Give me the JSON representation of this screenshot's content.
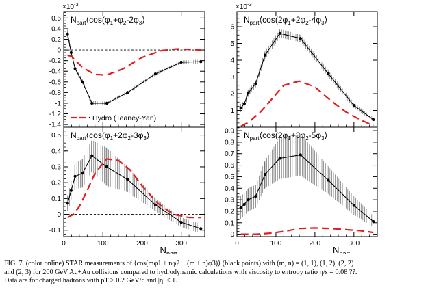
{
  "caption": {
    "lines": [
      "FIG. 7. (color online) STAR measurements of ⟨cos(mφ1 + nφ2 − (m + n)φ3)⟩ (black points) with (m, n) = (1, 1), (1, 2), (2, 2)",
      "and (2, 3) for 200 GeV Au+Au collisions compared to hydrodynamic calculations with viscosity to entropy ratio η/s = 0.08 ??.",
      "Data are for charged hadrons with pT > 0.2 GeV/c and |η| < 1."
    ]
  },
  "axis_title_x": "N",
  "axis_title_x_sub": "part",
  "chart_data": [
    {
      "type": "line",
      "title": {
        "pre": "N",
        "pre_sub": "part",
        "text": "⟨cos(φ",
        "parts": [
          [
            "1",
            "+φ"
          ],
          [
            "2",
            "-2φ"
          ],
          [
            "3",
            "⟩"
          ]
        ]
      },
      "multiplier": "×10",
      "multiplier_exp": "-3",
      "xlim": [
        0,
        360
      ],
      "ylim": [
        -1.45,
        0.72
      ],
      "yticks": [
        "0.6",
        "0.4",
        "0.2",
        "0",
        "-0.2",
        "-0.4",
        "-0.6",
        "-0.8",
        "-1",
        "-1.2",
        "-1.4"
      ],
      "ytick_values": [
        0.6,
        0.4,
        0.2,
        0,
        -0.2,
        -0.4,
        -0.6,
        -0.8,
        -1,
        -1.2,
        -1.4
      ],
      "xticks": [],
      "xtick_values": [
        100,
        200,
        300
      ],
      "dashed_zero": true,
      "legend": {
        "label": "Hydro (Teaney-Yan)",
        "position": "bottom-left"
      },
      "series": [
        {
          "kind": "data",
          "x": [
            10,
            19,
            29,
            48,
            72,
            110,
            163,
            234,
            300,
            350
          ],
          "y": [
            0.3,
            -0.05,
            -0.35,
            -0.6,
            -1.0,
            -1.0,
            -0.8,
            -0.45,
            -0.23,
            -0.22
          ],
          "err": [
            0.08,
            0.05,
            0.05,
            0.04,
            0.04,
            0.03,
            0.03,
            0.03,
            0.03,
            0.04
          ]
        },
        {
          "kind": "hydro",
          "x": [
            10,
            20,
            30,
            50,
            80,
            110,
            150,
            200,
            250,
            290,
            320,
            350
          ],
          "y": [
            -0.1,
            -0.12,
            -0.2,
            -0.34,
            -0.46,
            -0.47,
            -0.36,
            -0.14,
            -0.01,
            0.02,
            0.01,
            0.0
          ]
        }
      ]
    },
    {
      "type": "line",
      "title": {
        "pre": "N",
        "pre_sub": "part",
        "text": "⟨cos(2φ",
        "parts": [
          [
            "1",
            "+2φ"
          ],
          [
            "2",
            "-4φ"
          ],
          [
            "3",
            "⟩"
          ]
        ]
      },
      "multiplier": "×10",
      "multiplier_exp": "-3",
      "xlim": [
        0,
        360
      ],
      "ylim": [
        0,
        6.9
      ],
      "yticks": [
        "6",
        "5",
        "4",
        "3",
        "2",
        "1"
      ],
      "ytick_values": [
        6,
        5,
        4,
        3,
        2,
        1
      ],
      "xticks": [],
      "xtick_values": [
        100,
        200,
        300
      ],
      "dashed_zero": false,
      "series": [
        {
          "kind": "data",
          "x": [
            10,
            19,
            29,
            48,
            72,
            110,
            163,
            234,
            300,
            350
          ],
          "y": [
            1.15,
            1.4,
            2.05,
            2.6,
            4.3,
            5.6,
            5.3,
            3.2,
            1.3,
            0.45
          ],
          "err": [
            0.25,
            0.2,
            0.2,
            0.2,
            0.25,
            0.25,
            0.22,
            0.2,
            0.15,
            0.12
          ]
        },
        {
          "kind": "hydro",
          "x": [
            10,
            30,
            60,
            90,
            120,
            160,
            200,
            240,
            280,
            320,
            350
          ],
          "y": [
            0.05,
            0.3,
            0.9,
            1.7,
            2.5,
            2.75,
            2.4,
            1.6,
            0.9,
            0.4,
            0.1
          ]
        }
      ]
    },
    {
      "type": "line",
      "title": {
        "pre": "N",
        "pre_sub": "part",
        "text": "⟨cos(φ",
        "parts": [
          [
            "1",
            "+2φ"
          ],
          [
            "2",
            "-3φ"
          ],
          [
            "3",
            "⟩"
          ]
        ]
      },
      "xlim": [
        0,
        360
      ],
      "ylim": [
        -0.14,
        0.55
      ],
      "yticks": [
        "0.5",
        "0.4",
        "0.3",
        "0.2",
        "0.1",
        "0",
        "-0.1"
      ],
      "ytick_values": [
        0.5,
        0.4,
        0.3,
        0.2,
        0.1,
        0,
        -0.1
      ],
      "xticks": [
        "0",
        "100",
        "200",
        "300"
      ],
      "xtick_values": [
        0,
        100,
        200,
        300
      ],
      "dashed_zero": true,
      "series": [
        {
          "kind": "data",
          "x": [
            10,
            19,
            29,
            48,
            72,
            110,
            163,
            234,
            300,
            350
          ],
          "y": [
            0.07,
            0.15,
            0.24,
            0.26,
            0.37,
            0.3,
            0.22,
            0.06,
            -0.05,
            -0.09
          ],
          "err": [
            0.05,
            0.06,
            0.08,
            0.09,
            0.1,
            0.12,
            0.08,
            0.04,
            0.03,
            0.03
          ]
        },
        {
          "kind": "hydro",
          "x": [
            10,
            25,
            40,
            60,
            80,
            110,
            140,
            170,
            200,
            240,
            280,
            320,
            350
          ],
          "y": [
            -0.02,
            0.0,
            0.05,
            0.15,
            0.26,
            0.35,
            0.34,
            0.28,
            0.18,
            0.07,
            0.0,
            -0.02,
            -0.02
          ]
        }
      ]
    },
    {
      "type": "line",
      "title": {
        "pre": "N",
        "pre_sub": "part",
        "text": "⟨cos(2φ",
        "parts": [
          [
            "1",
            "+3φ"
          ],
          [
            "2",
            "-5φ"
          ],
          [
            "3",
            "⟩"
          ]
        ]
      },
      "xlim": [
        0,
        360
      ],
      "ylim": [
        -0.02,
        0.93
      ],
      "yticks": [
        "0.9",
        "0.8",
        "0.7",
        "0.6",
        "0.5",
        "0.4",
        "0.3",
        "0.2",
        "0.1",
        "0"
      ],
      "ytick_values": [
        0.9,
        0.8,
        0.7,
        0.6,
        0.5,
        0.4,
        0.3,
        0.2,
        0.1,
        0
      ],
      "xticks": [
        "0",
        "100",
        "200",
        "300"
      ],
      "xtick_values": [
        0,
        100,
        200,
        300
      ],
      "dashed_zero": false,
      "series": [
        {
          "kind": "data",
          "x": [
            10,
            19,
            29,
            48,
            72,
            110,
            163,
            234,
            300,
            350
          ],
          "y": [
            0.23,
            0.26,
            0.3,
            0.33,
            0.52,
            0.66,
            0.69,
            0.47,
            0.25,
            0.11
          ],
          "err": [
            0.1,
            0.1,
            0.1,
            0.1,
            0.12,
            0.18,
            0.18,
            0.12,
            0.08,
            0.05
          ]
        },
        {
          "kind": "hydro",
          "x": [
            10,
            50,
            90,
            130,
            160,
            200,
            240,
            280,
            320,
            350
          ],
          "y": [
            0.0,
            0.0,
            0.01,
            0.03,
            0.05,
            0.055,
            0.05,
            0.04,
            0.03,
            0.015
          ]
        }
      ]
    }
  ],
  "colors": {
    "data": "#000000",
    "hydro": "#e41a1c",
    "frame": "#000000"
  }
}
